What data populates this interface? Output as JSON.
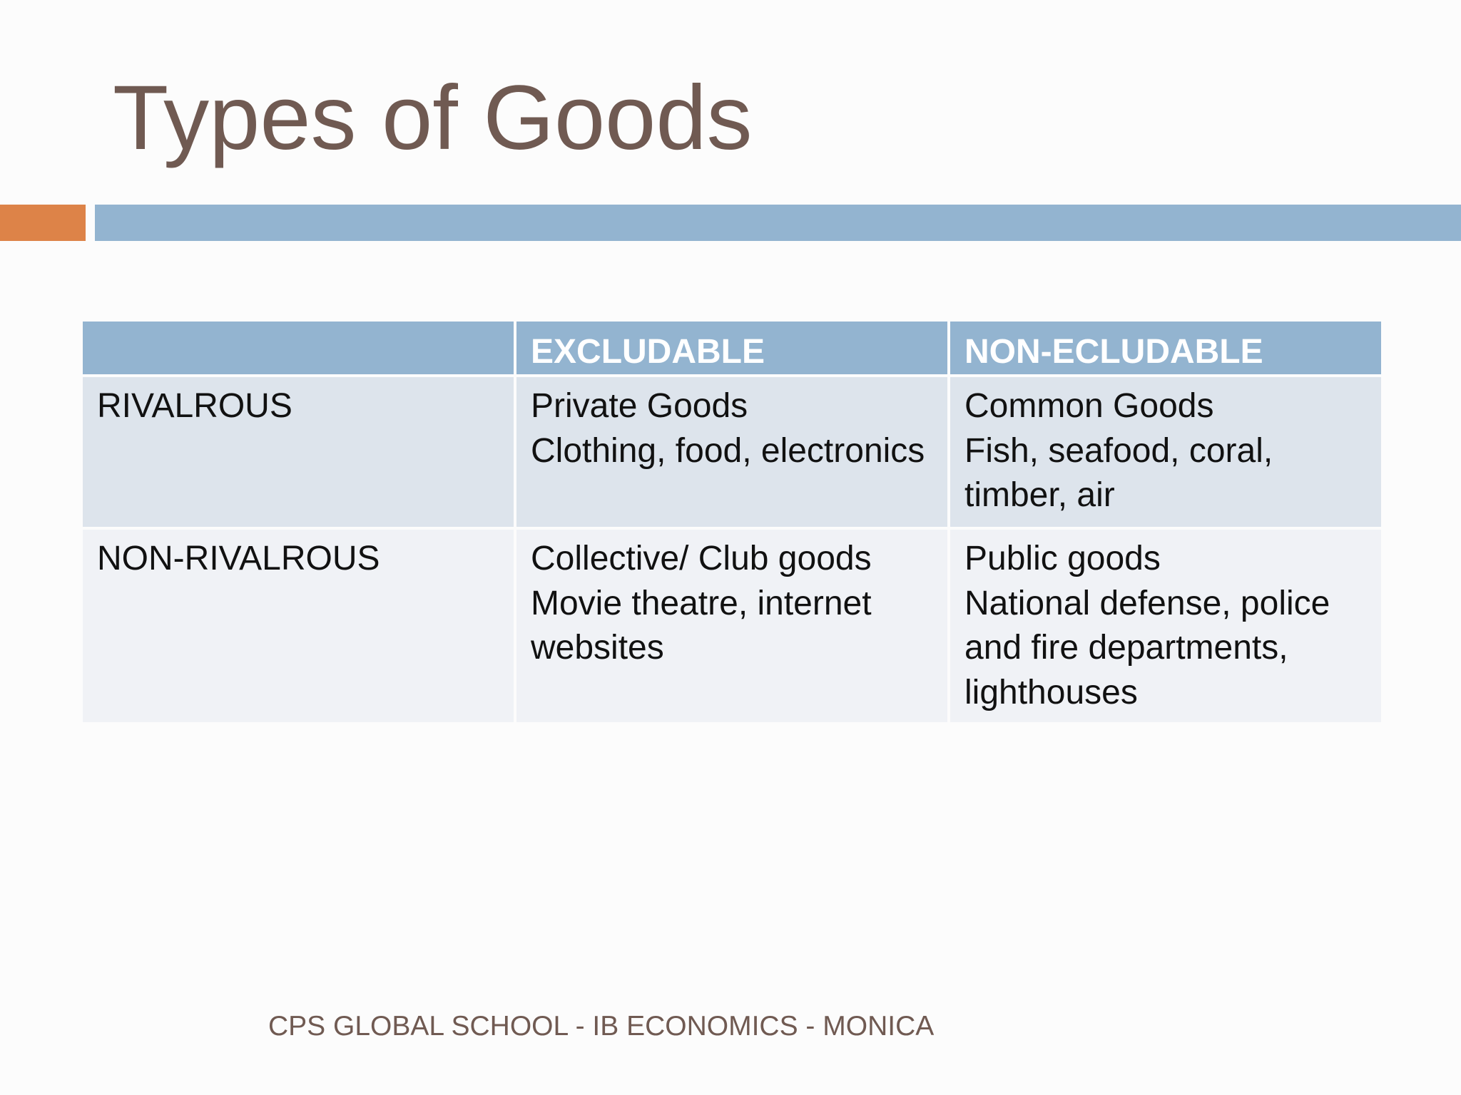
{
  "slide": {
    "title": "Types of Goods",
    "footer": "CPS GLOBAL SCHOOL - IB ECONOMICS - MONICA",
    "colors": {
      "title_text": "#705a52",
      "accent_orange": "#dd8348",
      "accent_blue": "#93b4d0",
      "header_fill": "#93b4d0",
      "row_fill_odd": "#dde4ec",
      "row_fill_even": "#f0f2f6"
    }
  },
  "table": {
    "headers": [
      "",
      "EXCLUDABLE",
      "NON-ECLUDABLE"
    ],
    "rows": [
      {
        "label": "RIVALROUS",
        "excludable": {
          "title": "Private Goods",
          "examples": "Clothing, food, electronics"
        },
        "non_excludable": {
          "title": "Common Goods",
          "examples": "Fish, seafood, coral, timber, air"
        }
      },
      {
        "label": "NON-RIVALROUS",
        "excludable": {
          "title": "Collective/ Club goods",
          "examples": "Movie theatre, internet websites"
        },
        "non_excludable": {
          "title": "Public goods",
          "examples": "National defense, police and fire departments, lighthouses"
        }
      }
    ]
  }
}
